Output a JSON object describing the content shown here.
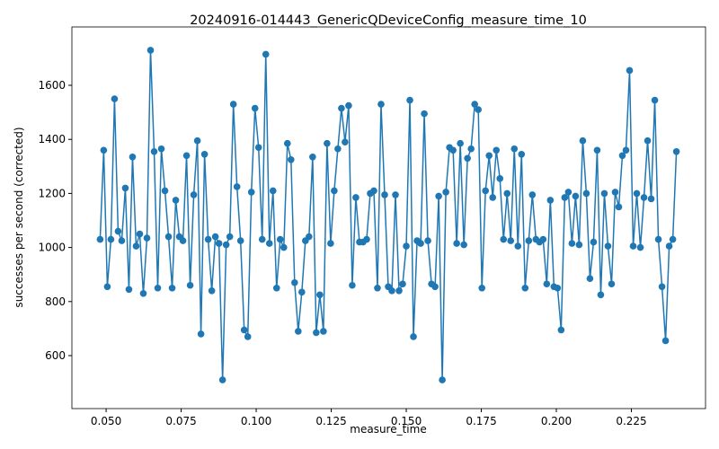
{
  "chart_data": {
    "type": "line",
    "title": "20240916-014443_GenericQDeviceConfig_measure_time_10",
    "xlabel": "measure_time",
    "ylabel": "successes per second (corrected)",
    "color": "#1f77b4",
    "markers": true,
    "grid": false,
    "xlim": [
      0.0386,
      0.2497
    ],
    "ylim": [
      404,
      1816
    ],
    "xticks": [
      {
        "value": 0.05,
        "label": "0.050"
      },
      {
        "value": 0.075,
        "label": "0.075"
      },
      {
        "value": 0.1,
        "label": "0.100"
      },
      {
        "value": 0.125,
        "label": "0.125"
      },
      {
        "value": 0.15,
        "label": "0.150"
      },
      {
        "value": 0.175,
        "label": "0.175"
      },
      {
        "value": 0.2,
        "label": "0.200"
      },
      {
        "value": 0.225,
        "label": "0.225"
      }
    ],
    "yticks": [
      600,
      800,
      1000,
      1200,
      1400,
      1600
    ],
    "x": [
      0.048,
      0.0492,
      0.0504,
      0.0516,
      0.0528,
      0.054,
      0.0552,
      0.0564,
      0.0576,
      0.0588,
      0.06,
      0.0612,
      0.0624,
      0.0636,
      0.0648,
      0.066,
      0.0672,
      0.0684,
      0.0696,
      0.0708,
      0.072,
      0.0732,
      0.0744,
      0.0756,
      0.0768,
      0.078,
      0.0792,
      0.0804,
      0.0816,
      0.0828,
      0.084,
      0.0852,
      0.0864,
      0.0876,
      0.0888,
      0.09,
      0.0912,
      0.0924,
      0.0936,
      0.0948,
      0.096,
      0.0972,
      0.0984,
      0.0996,
      0.1008,
      0.102,
      0.1032,
      0.1044,
      0.1056,
      0.1068,
      0.108,
      0.1092,
      0.1104,
      0.1116,
      0.1128,
      0.114,
      0.1152,
      0.1164,
      0.1176,
      0.1188,
      0.12,
      0.1212,
      0.1224,
      0.1236,
      0.1248,
      0.126,
      0.1272,
      0.1284,
      0.1296,
      0.1308,
      0.132,
      0.1332,
      0.1344,
      0.1356,
      0.1368,
      0.138,
      0.1392,
      0.1404,
      0.1416,
      0.1428,
      0.144,
      0.1452,
      0.1464,
      0.1476,
      0.1488,
      0.15,
      0.1512,
      0.1524,
      0.1536,
      0.1548,
      0.156,
      0.1572,
      0.1584,
      0.1596,
      0.1608,
      0.162,
      0.1632,
      0.1644,
      0.1656,
      0.1668,
      0.168,
      0.1692,
      0.1704,
      0.1716,
      0.1728,
      0.174,
      0.1752,
      0.1764,
      0.1776,
      0.1788,
      0.18,
      0.1812,
      0.1824,
      0.1836,
      0.1848,
      0.186,
      0.1872,
      0.1884,
      0.1896,
      0.1908,
      0.192,
      0.1932,
      0.1944,
      0.1956,
      0.1968,
      0.198,
      0.1992,
      0.2004,
      0.2016,
      0.2028,
      0.204,
      0.2052,
      0.2064,
      0.2076,
      0.2088,
      0.21,
      0.2112,
      0.2124,
      0.2136,
      0.2148,
      0.216,
      0.2172,
      0.2184,
      0.2196,
      0.2208,
      0.222,
      0.2232,
      0.2244,
      0.2256,
      0.2268,
      0.228,
      0.2292,
      0.2304,
      0.2316,
      0.2328,
      0.234,
      0.2352,
      0.2364,
      0.2376,
      0.2388,
      0.24
    ],
    "values": [
      1030,
      1360,
      855,
      1030,
      1550,
      1060,
      1025,
      1220,
      845,
      1335,
      1005,
      1050,
      830,
      1035,
      1730,
      1355,
      850,
      1365,
      1210,
      1040,
      850,
      1175,
      1040,
      1025,
      1340,
      860,
      1195,
      1395,
      680,
      1345,
      1030,
      840,
      1040,
      1015,
      510,
      1010,
      1040,
      1530,
      1225,
      1025,
      695,
      670,
      1205,
      1515,
      1370,
      1030,
      1715,
      1015,
      1210,
      850,
      1030,
      1000,
      1385,
      1325,
      870,
      690,
      835,
      1025,
      1040,
      1335,
      685,
      825,
      690,
      1385,
      1015,
      1210,
      1365,
      1515,
      1390,
      1525,
      860,
      1185,
      1020,
      1020,
      1030,
      1200,
      1210,
      850,
      1530,
      1195,
      855,
      840,
      1195,
      840,
      865,
      1005,
      1545,
      670,
      1025,
      1015,
      1495,
      1025,
      865,
      855,
      1190,
      510,
      1205,
      1370,
      1360,
      1015,
      1385,
      1010,
      1330,
      1365,
      1530,
      1510,
      850,
      1210,
      1340,
      1185,
      1360,
      1255,
      1030,
      1200,
      1025,
      1365,
      1005,
      1345,
      850,
      1025,
      1195,
      1030,
      1020,
      1030,
      865,
      1175,
      855,
      850,
      695,
      1185,
      1205,
      1015,
      1190,
      1010,
      1395,
      1200,
      885,
      1020,
      1360,
      825,
      1200,
      1005,
      865,
      1205,
      1150,
      1340,
      1360,
      1655,
      1005,
      1200,
      1000,
      1185,
      1395,
      1180,
      1545,
      1030,
      855,
      655,
      1005,
      1030,
      1355
    ]
  }
}
